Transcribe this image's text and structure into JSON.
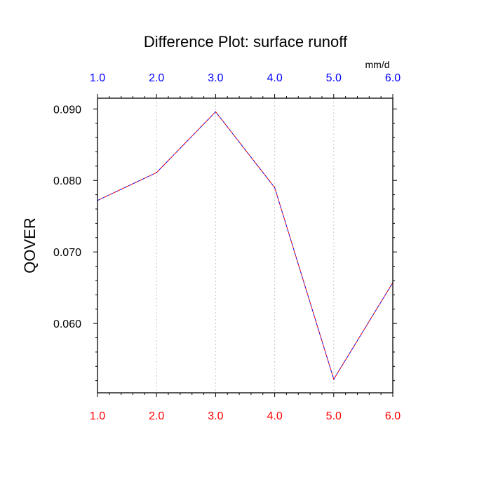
{
  "chart_data": {
    "type": "line",
    "title": "Difference Plot: surface runoff",
    "units": "mm/d",
    "ylabel": "QOVER",
    "xlim": [
      1.0,
      6.0
    ],
    "ylim": [
      0.0503,
      0.0915
    ],
    "x_ticks": [
      "1.0",
      "2.0",
      "3.0",
      "4.0",
      "5.0",
      "6.0"
    ],
    "x_tick_values": [
      1,
      2,
      3,
      4,
      5,
      6
    ],
    "y_ticks": [
      "0.060",
      "0.070",
      "0.080",
      "0.090"
    ],
    "y_tick_values": [
      0.06,
      0.07,
      0.08,
      0.09
    ],
    "x_tick_color_bottom": "#ff0000",
    "x_tick_color_top": "#0000ff",
    "grid": "vertical dotted",
    "series": [
      {
        "x": [
          1.0,
          2.0,
          3.0,
          4.0,
          5.0,
          6.0
        ],
        "values": [
          0.0772,
          0.0811,
          0.0896,
          0.079,
          0.0522,
          0.0657
        ],
        "colors": [
          "#0000ff",
          "#ff0000"
        ],
        "style": "dashed"
      }
    ]
  }
}
